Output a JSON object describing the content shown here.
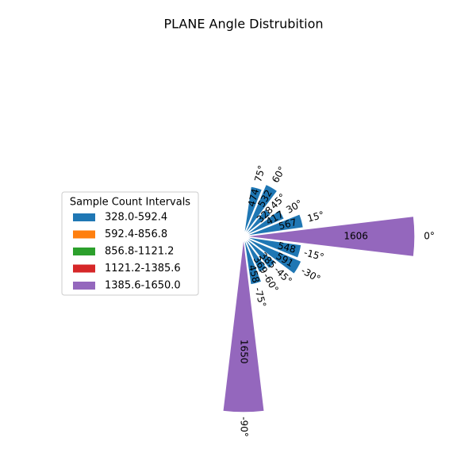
{
  "chart_data": {
    "type": "polar_bar",
    "title": "PLANE Angle Distrubition",
    "categories": [
      "75°",
      "60°",
      "45°",
      "30°",
      "15°",
      "0°",
      "-15°",
      "-30°",
      "-45°",
      "-60°",
      "-75°",
      "-90°"
    ],
    "angles": [
      75,
      60,
      45,
      30,
      15,
      0,
      -15,
      -30,
      -45,
      -60,
      -75,
      -90
    ],
    "values": [
      474,
      532,
      328,
      417,
      567,
      1606,
      548,
      591,
      385,
      369,
      458,
      1650
    ],
    "colors": [
      "#1f77b4",
      "#1f77b4",
      "#1f77b4",
      "#1f77b4",
      "#1f77b4",
      "#9467bd",
      "#1f77b4",
      "#1f77b4",
      "#1f77b4",
      "#1f77b4",
      "#1f77b4",
      "#9467bd"
    ],
    "rlim": [
      0,
      1650
    ],
    "legend": {
      "title": "Sample Count Intervals",
      "position": "left",
      "items": [
        {
          "label": "328.0-592.4",
          "color": "#1f77b4"
        },
        {
          "label": "592.4-856.8",
          "color": "#ff7f0e"
        },
        {
          "label": "856.8-1121.2",
          "color": "#2ca02c"
        },
        {
          "label": "1121.2-1385.6",
          "color": "#d62728"
        },
        {
          "label": "1385.6-1650.0",
          "color": "#9467bd"
        }
      ]
    }
  }
}
